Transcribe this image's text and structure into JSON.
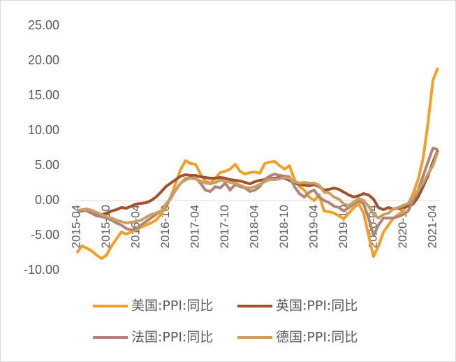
{
  "chart_data": {
    "type": "line",
    "categories": [
      "2015-04",
      null,
      null,
      null,
      null,
      null,
      "2015-10",
      null,
      null,
      null,
      null,
      null,
      "2016-04",
      null,
      null,
      null,
      null,
      null,
      "2016-10",
      null,
      null,
      null,
      null,
      null,
      "2017-04",
      null,
      null,
      null,
      null,
      null,
      "2017-10",
      null,
      null,
      null,
      null,
      null,
      "2018-04",
      null,
      null,
      null,
      null,
      null,
      "2018-10",
      null,
      null,
      null,
      null,
      null,
      "2019-04",
      null,
      null,
      null,
      null,
      null,
      "2019-10",
      null,
      null,
      null,
      null,
      null,
      "2020-04",
      null,
      null,
      null,
      null,
      null,
      "2020-10",
      null,
      null,
      null,
      null,
      null,
      "2021-04",
      null
    ],
    "series": [
      {
        "name": "美国:PPI:同比",
        "color": "#f0a02a",
        "values": [
          -7.5,
          -6.5,
          -6.8,
          -7.2,
          -7.8,
          -8.3,
          -7.8,
          -6.5,
          -5.5,
          -4.5,
          -4.8,
          -4.5,
          -4.2,
          -3.8,
          -3.5,
          -3.2,
          -2.8,
          -2,
          -1,
          0.5,
          2.5,
          4.5,
          5.7,
          5.3,
          5.2,
          3.8,
          2.8,
          2.5,
          3.2,
          4,
          4.2,
          4.5,
          5.2,
          4.2,
          3.8,
          4,
          4.1,
          3.9,
          5.3,
          5.5,
          5.6,
          5,
          4.5,
          5,
          3,
          2,
          1.5,
          0.5,
          0,
          0.8,
          -1.5,
          -1.6,
          -1.8,
          -2.2,
          -2.6,
          -1.8,
          -1,
          -0.5,
          -1.8,
          -5,
          -8,
          -6.5,
          -4.5,
          -3.5,
          -2.5,
          -2,
          -1.5,
          -0.5,
          1,
          3,
          6,
          11,
          17.2,
          19
        ]
      },
      {
        "name": "英国:PPI:同比",
        "color": "#a0522d",
        "values": [
          -1.5,
          -1.5,
          -1.3,
          -1.4,
          -1.8,
          -2,
          -1.8,
          -1.5,
          -1.3,
          -1,
          -1.1,
          -0.8,
          -0.5,
          -0.4,
          -0.3,
          0,
          0.5,
          1.2,
          2,
          2.5,
          3,
          3.5,
          3.7,
          3.6,
          3.6,
          3.4,
          3.3,
          3.2,
          3.2,
          3.3,
          3.2,
          3,
          2.9,
          2.8,
          2.6,
          2.4,
          2.7,
          2.9,
          3,
          3.1,
          3.2,
          3.3,
          3.2,
          2.9,
          2.5,
          2.3,
          2.2,
          2.1,
          2.3,
          2,
          1.5,
          1.6,
          1.8,
          1.6,
          1.2,
          0.8,
          0.5,
          0.7,
          1,
          0.8,
          0.2,
          -1,
          -1.3,
          -1,
          -1.2,
          -1.1,
          -1,
          -0.8,
          -0.5,
          0.5,
          2,
          3.5,
          5.5,
          7.2
        ]
      },
      {
        "name": "法国:PPI:同比",
        "color": "#b08579",
        "values": [
          -1.5,
          -1.3,
          -1.5,
          -1.8,
          -2.2,
          -2.3,
          -2.5,
          -2.8,
          -3.2,
          -3.5,
          -4,
          -4.2,
          -4,
          -3.5,
          -3,
          -2.5,
          -2,
          -1.5,
          -0.8,
          0.5,
          1.5,
          2.5,
          3,
          3.2,
          3.3,
          2.5,
          1.5,
          1.3,
          2,
          1.8,
          2.5,
          1.5,
          2.3,
          2,
          1.8,
          1.3,
          1.5,
          2,
          3,
          3.5,
          3.8,
          3.6,
          3.5,
          3.4,
          2,
          1,
          0.5,
          1.2,
          1.5,
          0.5,
          0,
          -0.3,
          -0.8,
          -1,
          -1.5,
          -1,
          -0.5,
          0,
          -0.5,
          -2.5,
          -5,
          -3.5,
          -2.5,
          -2.5,
          -2.5,
          -2.3,
          -2,
          -1.5,
          0,
          1.5,
          3.5,
          5.5,
          7.5,
          7.3
        ]
      },
      {
        "name": "德国:PPI:同比",
        "color": "#c9a063",
        "values": [
          -1.5,
          -1.3,
          -1.2,
          -1.4,
          -1.7,
          -2,
          -2.3,
          -2.5,
          -2.8,
          -3,
          -3.2,
          -3.1,
          -3,
          -2.8,
          -2.4,
          -2,
          -1.8,
          -1.5,
          -0.5,
          0.3,
          1.5,
          2.5,
          3.2,
          3.2,
          3.1,
          2.8,
          2.5,
          2.4,
          2.6,
          2.9,
          2.8,
          2.6,
          2.5,
          2.2,
          1.9,
          1.8,
          2,
          2.3,
          2.7,
          3,
          3,
          3.1,
          3.3,
          3.2,
          2.7,
          2.5,
          2.6,
          2.5,
          2.5,
          2.2,
          1.2,
          1.1,
          0.5,
          0.2,
          -0.5,
          -0.7,
          -0.2,
          0.3,
          0,
          -0.8,
          -2,
          -2.5,
          -2,
          -1.8,
          -1.2,
          -1,
          -0.7,
          -0.4,
          0.5,
          1.5,
          2.5,
          3.8,
          5,
          7
        ]
      }
    ],
    "ylim": [
      -10,
      25
    ],
    "yticks": [
      {
        "value": -10,
        "label": "-10.00"
      },
      {
        "value": -5,
        "label": "-5.00"
      },
      {
        "value": 0,
        "label": "0.00"
      },
      {
        "value": 5,
        "label": "5.00"
      },
      {
        "value": 10,
        "label": "10.00"
      },
      {
        "value": 15,
        "label": "15.00"
      },
      {
        "value": 20,
        "label": "20.00"
      },
      {
        "value": 25,
        "label": "25.00"
      }
    ]
  }
}
